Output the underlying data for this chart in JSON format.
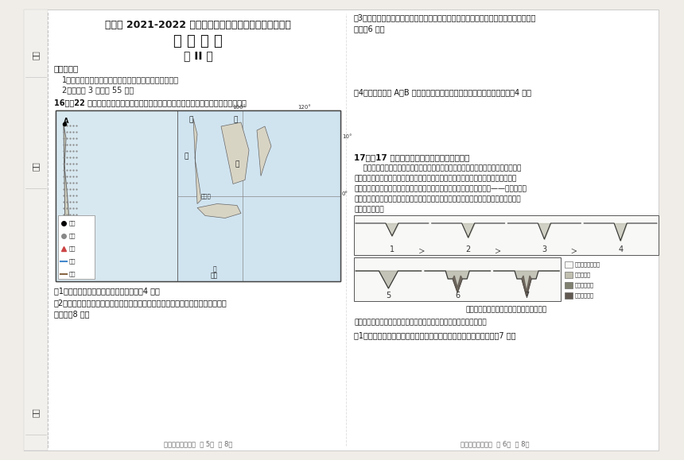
{
  "bg_color": "#f0ede8",
  "page_bg": "#ffffff",
  "title_main": "河西区 2021-2022 学年度第一学期高三年级期中质量调查",
  "title_sub": "地 理 试 卷",
  "title_part": "第 II 卷",
  "notes_header": "注意事项：",
  "note1": "1．用黑色墨水的钢笔或签字笔将答案填写在答题纸上。",
  "note2": "2．本卷共 3 题，共 55 分。",
  "q16_intro": "16．（22 分）下图为世界某区域示意图，读图文材料，结合所学知识，完成下列问题。",
  "q16_sub1": "（1）简要概括苏门答腊岛的地形特征。（4 分）",
  "q16_sub2_l1": "（2）图示区域有地质灾害的超市之称，请说出该地常见的两种地质灾害，并分析其",
  "q16_sub2_l2": "成因。（8 分）",
  "q16_sub3_l1": "（3）试分析新加坡岛淡水资源缺乏的主要自然原因，列举该岛获取淡水资源两种可能方",
  "q16_sub3_l2": "式。（6 分）",
  "q16_sub4": "（4）若修建连接 A、B 两城的铁路，当地自然条件对施工有哪些影响？（4 分）",
  "q17_header": "17．（17 分）阅读图文材料，完成下列要求。",
  "q17_l1": "    河流下切侵蚀，原来的河谷底部超出一般洪水位之上，呈阶梯状分布在河谷坡地上，",
  "q17_l2": "被称为河流阶地。某中学地理研学小组在地质老师的带领下，观察到金沙江下游河谷里",
  "q17_l3": "深切峡谷形态，河谷中堆积了大量松散沉积物，后又发现金沙江下游巧家——鲁甸段河谷",
  "q17_l4": "某处发育和保存了多级河流阶地，并在赵老师的指导下绘制了该地多级河流阶地的剖面示",
  "q17_l5": "意（如下图）。",
  "q17_diagram_label": "金沙江下游该段河谷阶段发育的不同阶段。",
  "q17_extra": "通过走访与资料调查，研学小组发现则该段河谷曾发生过多次的隆升。",
  "q17_sub1": "（1）请判断断图中哪些阶段表示区域隆升运动较快，并说明原因。（7 分）",
  "legend_items": [
    "下切堆积侵蚀阶宽",
    "河流相沉积",
    "堰塞湖相沉积",
    "黄土或堆积物"
  ],
  "footer_left": "高三年级地理试卷  第 5页  共 8页",
  "footer_right": "高三年级地理试卷  第 6页  共 8页",
  "sidebar_labels": [
    "姓名",
    "班级",
    "学校"
  ],
  "text_color": "#1a1a1a",
  "map_legend": [
    "城市",
    "村镇",
    "火山",
    "河流",
    "稻田"
  ]
}
